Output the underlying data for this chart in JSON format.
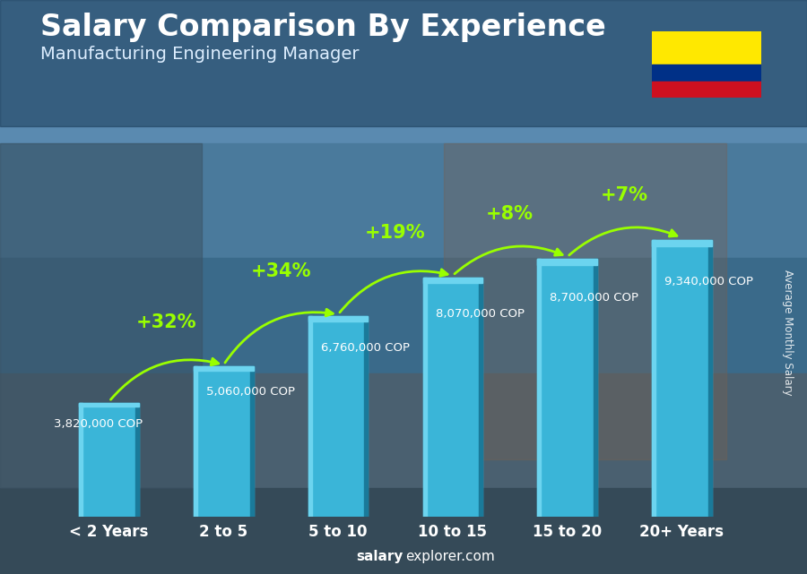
{
  "title": "Salary Comparison By Experience",
  "subtitle": "Manufacturing Engineering Manager",
  "categories": [
    "< 2 Years",
    "2 to 5",
    "5 to 10",
    "10 to 15",
    "15 to 20",
    "20+ Years"
  ],
  "values": [
    3820000,
    5060000,
    6760000,
    8070000,
    8700000,
    9340000
  ],
  "labels": [
    "3,820,000 COP",
    "5,060,000 COP",
    "6,760,000 COP",
    "8,070,000 COP",
    "8,700,000 COP",
    "9,340,000 COP"
  ],
  "pct_changes": [
    null,
    "+32%",
    "+34%",
    "+19%",
    "+8%",
    "+7%"
  ],
  "bar_color_main": "#3ab5d8",
  "bar_color_light": "#6cd4ef",
  "bar_color_dark": "#1a7a9a",
  "bar_color_side": "#2899b8",
  "bg_top_color": "#4a7fa0",
  "bg_bottom_color": "#2a4a60",
  "title_color": "#ffffff",
  "subtitle_color": "#ddeeff",
  "label_color": "#ffffff",
  "pct_color": "#99ff00",
  "arrow_color": "#99ff00",
  "ylabel": "Average Monthly Salary",
  "footer_bold": "salary",
  "footer_normal": "explorer.com",
  "footer_color": "#ffffff",
  "ylim_max": 12000000,
  "flag_yellow": "#ffe800",
  "flag_blue": "#003087",
  "flag_red": "#ce1020",
  "bar_width": 0.52,
  "label_fontsize": 9.5,
  "pct_fontsize": 15,
  "cat_fontsize": 12,
  "title_fontsize": 24,
  "subtitle_fontsize": 14
}
